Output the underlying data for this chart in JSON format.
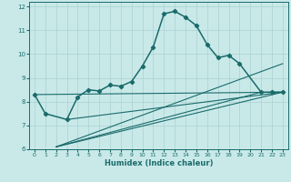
{
  "xlabel": "Humidex (Indice chaleur)",
  "xlim": [
    -0.5,
    23.5
  ],
  "ylim": [
    6,
    12.2
  ],
  "xticks": [
    0,
    1,
    2,
    3,
    4,
    5,
    6,
    7,
    8,
    9,
    10,
    11,
    12,
    13,
    14,
    15,
    16,
    17,
    18,
    19,
    20,
    21,
    22,
    23
  ],
  "yticks": [
    6,
    7,
    8,
    9,
    10,
    11,
    12
  ],
  "bg_color": "#c9e9e9",
  "grid_color": "#b0d4d4",
  "line_color": "#1a6b6b",
  "curve": {
    "x": [
      0,
      1,
      3,
      4,
      5,
      6,
      7,
      8,
      9,
      10,
      11,
      12,
      13,
      14,
      15,
      16,
      17,
      18,
      19,
      21,
      22,
      23
    ],
    "y": [
      8.3,
      7.5,
      7.25,
      8.2,
      8.5,
      8.45,
      8.7,
      8.65,
      8.85,
      9.5,
      10.3,
      11.7,
      11.8,
      11.55,
      11.2,
      10.4,
      9.85,
      9.95,
      9.6,
      8.4,
      8.4,
      8.4
    ]
  },
  "lines": [
    {
      "x1": 0,
      "y1": 8.3,
      "x2": 23,
      "y2": 8.4
    },
    {
      "x1": 2,
      "y1": 6.1,
      "x2": 23,
      "y2": 8.4
    },
    {
      "x1": 2,
      "y1": 6.1,
      "x2": 21,
      "y2": 8.4
    },
    {
      "x1": 2,
      "y1": 6.1,
      "x2": 23,
      "y2": 9.6
    },
    {
      "x1": 3,
      "y1": 7.25,
      "x2": 23,
      "y2": 8.4
    }
  ]
}
